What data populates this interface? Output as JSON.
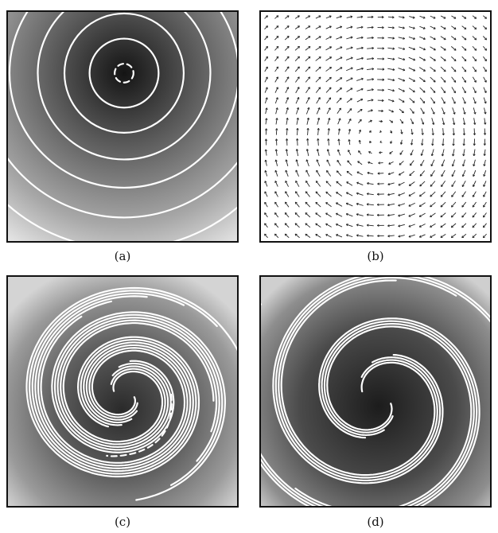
{
  "figure": {
    "panels": [
      {
        "id": "a",
        "caption": "(a)",
        "kind": "scalar-field-with-contours"
      },
      {
        "id": "b",
        "caption": "(b)",
        "kind": "vortex-vector-field"
      },
      {
        "id": "c",
        "caption": "(c)",
        "kind": "scalar-field-with-contours"
      },
      {
        "id": "d",
        "caption": "(d)",
        "kind": "scalar-field-with-contours"
      }
    ]
  },
  "colors": {
    "field_dark": "#1a1a1a",
    "field_light": "#e8e8e8",
    "contour": "#ffffff",
    "frame": "#111111",
    "arrow": "#222222"
  }
}
